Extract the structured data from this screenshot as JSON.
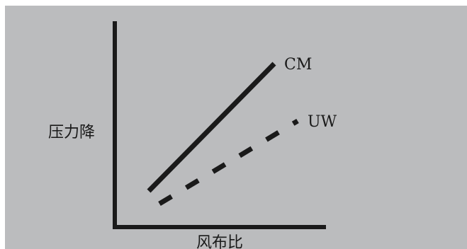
{
  "chart_data": {
    "type": "line",
    "xlabel": "风布比",
    "ylabel": "压力降",
    "ticks": "none",
    "grid": false,
    "background_color": "#bbbcbe",
    "ink_color": "#1a1a1a",
    "xlim": [
      0,
      10
    ],
    "ylim": [
      0,
      10
    ],
    "series": [
      {
        "name": "CM",
        "style": "solid",
        "x": [
          1.6,
          7.5
        ],
        "y": [
          1.7,
          7.7
        ]
      },
      {
        "name": "UW",
        "style": "dashed",
        "x": [
          2.1,
          8.6
        ],
        "y": [
          1.1,
          5.0
        ]
      }
    ]
  }
}
